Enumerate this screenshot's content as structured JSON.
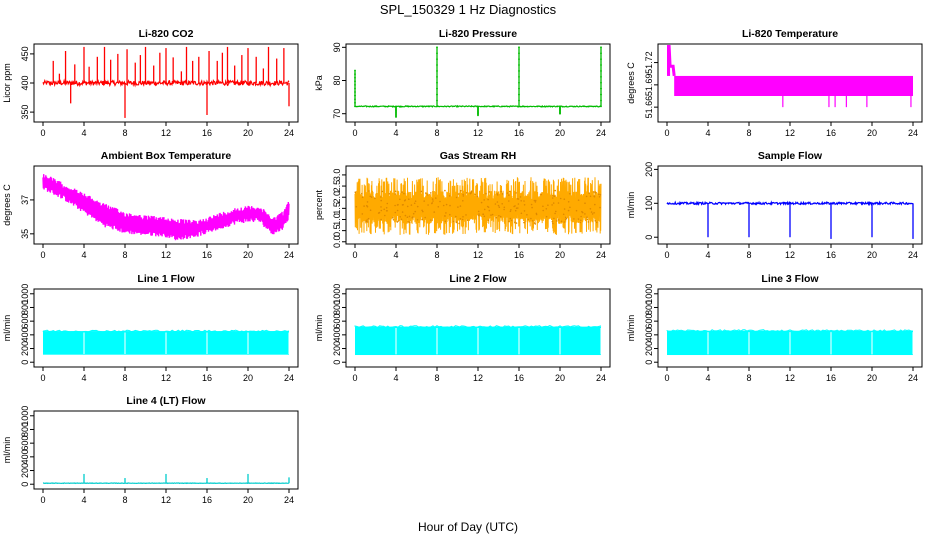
{
  "figure": {
    "title": "SPL_150329  1 Hz Diagnostics",
    "xlabel": "Hour of Day (UTC)"
  },
  "chart_data": [
    {
      "id": "co2",
      "type": "line",
      "title": "Li-820 CO2",
      "ylabel": "Licor ppm",
      "color": "#ff0000",
      "xlim": [
        0,
        24
      ],
      "xticks": [
        "0",
        "4",
        "8",
        "12",
        "16",
        "20",
        "24"
      ],
      "ylim": [
        333,
        467
      ],
      "yticks": [
        {
          "v": 350,
          "label": "350"
        },
        {
          "v": 400,
          "label": "400"
        },
        {
          "v": 450,
          "label": "450"
        }
      ],
      "pattern": "spiky",
      "base": 400,
      "noise": 4,
      "spikes": [
        {
          "x": 1.0,
          "y": 438
        },
        {
          "x": 1.6,
          "y": 416
        },
        {
          "x": 2.2,
          "y": 455
        },
        {
          "x": 2.7,
          "y": 365
        },
        {
          "x": 3.1,
          "y": 432
        },
        {
          "x": 4.0,
          "y": 462
        },
        {
          "x": 4.5,
          "y": 428
        },
        {
          "x": 5.3,
          "y": 445
        },
        {
          "x": 6.0,
          "y": 462
        },
        {
          "x": 6.6,
          "y": 440
        },
        {
          "x": 7.3,
          "y": 450
        },
        {
          "x": 8.0,
          "y": 340
        },
        {
          "x": 8.2,
          "y": 458
        },
        {
          "x": 9.0,
          "y": 435
        },
        {
          "x": 9.5,
          "y": 448
        },
        {
          "x": 10.0,
          "y": 462
        },
        {
          "x": 10.8,
          "y": 430
        },
        {
          "x": 11.4,
          "y": 452
        },
        {
          "x": 12.0,
          "y": 460
        },
        {
          "x": 12.7,
          "y": 444
        },
        {
          "x": 13.5,
          "y": 420
        },
        {
          "x": 14.0,
          "y": 462
        },
        {
          "x": 14.6,
          "y": 438
        },
        {
          "x": 15.2,
          "y": 445
        },
        {
          "x": 16.0,
          "y": 345
        },
        {
          "x": 16.2,
          "y": 455
        },
        {
          "x": 17.0,
          "y": 438
        },
        {
          "x": 17.5,
          "y": 452
        },
        {
          "x": 18.0,
          "y": 462
        },
        {
          "x": 18.7,
          "y": 430
        },
        {
          "x": 19.4,
          "y": 448
        },
        {
          "x": 20.0,
          "y": 460
        },
        {
          "x": 20.8,
          "y": 445
        },
        {
          "x": 21.5,
          "y": 425
        },
        {
          "x": 22.0,
          "y": 462
        },
        {
          "x": 22.8,
          "y": 442
        },
        {
          "x": 23.5,
          "y": 460
        },
        {
          "x": 24.0,
          "y": 360
        }
      ]
    },
    {
      "id": "pressure",
      "type": "line",
      "title": "Li-820 Pressure",
      "ylabel": "kPa",
      "color": "#00bb00",
      "xlim": [
        0,
        24
      ],
      "xticks": [
        "0",
        "4",
        "8",
        "12",
        "16",
        "20",
        "24"
      ],
      "ylim": [
        67.5,
        91
      ],
      "yticks": [
        {
          "v": 70,
          "label": "70"
        },
        {
          "v": 80,
          "label": "80"
        },
        {
          "v": 90,
          "label": "90"
        }
      ],
      "pattern": "flat",
      "base": 72.2,
      "noise": 0.15,
      "spikes": [
        {
          "x": 0.0,
          "y": 83
        },
        {
          "x": 4.0,
          "y": 69
        },
        {
          "x": 8.0,
          "y": 90
        },
        {
          "x": 12.0,
          "y": 69.5
        },
        {
          "x": 16.0,
          "y": 90
        },
        {
          "x": 20.0,
          "y": 70
        },
        {
          "x": 24.0,
          "y": 90
        }
      ]
    },
    {
      "id": "licor_temp",
      "type": "line",
      "title": "Li-820 Temperature",
      "ylabel": "degrees C",
      "color": "#ff00ff",
      "xlim": [
        0,
        24
      ],
      "xticks": [
        "0",
        "4",
        "8",
        "12",
        "16",
        "20",
        "24"
      ],
      "ylim": [
        51.64,
        51.745
      ],
      "yticks": [
        {
          "v": 51.66,
          "label": "51.66"
        },
        {
          "v": 51.69,
          "label": "51.69"
        },
        {
          "v": 51.72,
          "label": "51.72"
        }
      ],
      "pattern": "band",
      "band_low": 51.675,
      "band_high": 51.702,
      "early": [
        {
          "x": 0.0,
          "y": 51.745
        },
        {
          "x": 0.2,
          "y": 51.745
        },
        {
          "x": 0.3,
          "y": 51.715
        },
        {
          "x": 0.6,
          "y": 51.715
        },
        {
          "x": 0.7,
          "y": 51.702
        }
      ],
      "drops": [
        {
          "x": 11.3,
          "y": 51.66
        },
        {
          "x": 15.8,
          "y": 51.66
        },
        {
          "x": 16.4,
          "y": 51.66
        },
        {
          "x": 17.5,
          "y": 51.66
        },
        {
          "x": 19.5,
          "y": 51.66
        },
        {
          "x": 23.8,
          "y": 51.66
        }
      ]
    },
    {
      "id": "box_temp",
      "type": "line",
      "title": "Ambient Box Temperature",
      "ylabel": "degrees C",
      "color": "#ff00ff",
      "xlim": [
        0,
        24
      ],
      "xticks": [
        "0",
        "4",
        "8",
        "12",
        "16",
        "20",
        "24"
      ],
      "ylim": [
        34.4,
        39
      ],
      "yticks": [
        {
          "v": 35,
          "label": "35"
        },
        {
          "v": 37,
          "label": "37"
        }
      ],
      "pattern": "envelope",
      "curve": [
        {
          "x": 0,
          "lo": 37.6,
          "hi": 38.6
        },
        {
          "x": 2,
          "lo": 37.0,
          "hi": 38.0
        },
        {
          "x": 4,
          "lo": 36.2,
          "hi": 37.4
        },
        {
          "x": 6,
          "lo": 35.4,
          "hi": 36.8
        },
        {
          "x": 8,
          "lo": 35.0,
          "hi": 36.3
        },
        {
          "x": 10,
          "lo": 34.9,
          "hi": 36.1
        },
        {
          "x": 12,
          "lo": 34.8,
          "hi": 36.0
        },
        {
          "x": 13,
          "lo": 34.6,
          "hi": 35.9
        },
        {
          "x": 15,
          "lo": 34.8,
          "hi": 35.8
        },
        {
          "x": 17,
          "lo": 35.2,
          "hi": 36.2
        },
        {
          "x": 19,
          "lo": 35.6,
          "hi": 36.6
        },
        {
          "x": 21,
          "lo": 35.7,
          "hi": 36.7
        },
        {
          "x": 22.5,
          "lo": 34.9,
          "hi": 36.0
        },
        {
          "x": 23.5,
          "lo": 35.3,
          "hi": 36.4
        },
        {
          "x": 24,
          "lo": 35.9,
          "hi": 37.0
        }
      ]
    },
    {
      "id": "rh",
      "type": "line",
      "title": "Gas Stream RH",
      "ylabel": "percent",
      "color": "#ffaa00",
      "xlim": [
        0,
        24
      ],
      "xticks": [
        "0",
        "4",
        "8",
        "12",
        "16",
        "20",
        "24"
      ],
      "ylim": [
        -0.1,
        3.4
      ],
      "yticks": [
        {
          "v": 0.0,
          "label": "0.0"
        },
        {
          "v": 0.5,
          "label": "0.5"
        },
        {
          "v": 1.0,
          "label": "1.0"
        },
        {
          "v": 1.5,
          "label": "1.5"
        },
        {
          "v": 2.0,
          "label": "2.0"
        },
        {
          "v": 2.5,
          "label": "2.5"
        },
        {
          "v": 3.0,
          "label": "3.0"
        }
      ],
      "pattern": "noiseband",
      "lo": 0.3,
      "hi": 2.9,
      "core_lo": 0.8,
      "core_hi": 2.3
    },
    {
      "id": "sample_flow",
      "type": "line",
      "title": "Sample Flow",
      "ylabel": "ml/min",
      "color": "#0000ff",
      "xlim": [
        0,
        24
      ],
      "xticks": [
        "0",
        "4",
        "8",
        "12",
        "16",
        "20",
        "24"
      ],
      "ylim": [
        -20,
        210
      ],
      "yticks": [
        {
          "v": 0,
          "label": "0"
        },
        {
          "v": 100,
          "label": "100"
        },
        {
          "v": 200,
          "label": "200"
        }
      ],
      "pattern": "flat",
      "base": 100,
      "noise": 3,
      "spikes": [
        {
          "x": 4.0,
          "y": 0
        },
        {
          "x": 8.0,
          "y": 0
        },
        {
          "x": 12.0,
          "y": 0
        },
        {
          "x": 16.0,
          "y": -5
        },
        {
          "x": 20.0,
          "y": 0
        },
        {
          "x": 24.0,
          "y": -5
        }
      ]
    },
    {
      "id": "line1",
      "type": "area",
      "title": "Line 1 Flow",
      "ylabel": "ml/min",
      "color": "#00ffff",
      "xlim": [
        0,
        24
      ],
      "xticks": [
        "0",
        "4",
        "8",
        "12",
        "16",
        "20",
        "24"
      ],
      "ylim": [
        -70,
        1070
      ],
      "yticks": [
        {
          "v": 0,
          "label": "0"
        },
        {
          "v": 200,
          "label": "200"
        },
        {
          "v": 400,
          "label": "400"
        },
        {
          "v": 600,
          "label": "600"
        },
        {
          "v": 800,
          "label": "800"
        },
        {
          "v": 1000,
          "label": "1000"
        }
      ],
      "pattern": "block",
      "lo": 110,
      "hi": 455,
      "gaps": [
        4,
        8,
        12,
        16,
        20,
        24
      ]
    },
    {
      "id": "line2",
      "type": "area",
      "title": "Line 2 Flow",
      "ylabel": "ml/min",
      "color": "#00ffff",
      "xlim": [
        0,
        24
      ],
      "xticks": [
        "0",
        "4",
        "8",
        "12",
        "16",
        "20",
        "24"
      ],
      "ylim": [
        -70,
        1070
      ],
      "yticks": [
        {
          "v": 0,
          "label": "0"
        },
        {
          "v": 200,
          "label": "200"
        },
        {
          "v": 400,
          "label": "400"
        },
        {
          "v": 600,
          "label": "600"
        },
        {
          "v": 800,
          "label": "800"
        },
        {
          "v": 1000,
          "label": "1000"
        }
      ],
      "pattern": "block",
      "lo": 105,
      "hi": 520,
      "gaps": [
        4,
        8,
        12,
        16,
        20,
        24
      ]
    },
    {
      "id": "line3",
      "type": "area",
      "title": "Line 3 Flow",
      "ylabel": "ml/min",
      "color": "#00ffff",
      "xlim": [
        0,
        24
      ],
      "xticks": [
        "0",
        "4",
        "8",
        "12",
        "16",
        "20",
        "24"
      ],
      "ylim": [
        -70,
        1070
      ],
      "yticks": [
        {
          "v": 0,
          "label": "0"
        },
        {
          "v": 200,
          "label": "200"
        },
        {
          "v": 400,
          "label": "400"
        },
        {
          "v": 600,
          "label": "600"
        },
        {
          "v": 800,
          "label": "800"
        },
        {
          "v": 1000,
          "label": "1000"
        }
      ],
      "pattern": "block",
      "lo": 105,
      "hi": 460,
      "gaps": [
        4,
        8,
        12,
        16,
        20,
        24
      ]
    },
    {
      "id": "line4",
      "type": "line",
      "title": "Line 4 (LT) Flow",
      "ylabel": "ml/min",
      "color": "#00cccc",
      "xlim": [
        0,
        24
      ],
      "xticks": [
        "0",
        "4",
        "8",
        "12",
        "16",
        "20",
        "24"
      ],
      "ylim": [
        -70,
        1070
      ],
      "yticks": [
        {
          "v": 0,
          "label": "0"
        },
        {
          "v": 200,
          "label": "200"
        },
        {
          "v": 400,
          "label": "400"
        },
        {
          "v": 600,
          "label": "600"
        },
        {
          "v": 800,
          "label": "800"
        },
        {
          "v": 1000,
          "label": "1000"
        }
      ],
      "pattern": "flat",
      "base": 15,
      "noise": 3,
      "spikes": [
        {
          "x": 4.0,
          "y": 150
        },
        {
          "x": 8.0,
          "y": 90
        },
        {
          "x": 12.0,
          "y": 150
        },
        {
          "x": 16.0,
          "y": 90
        },
        {
          "x": 20.0,
          "y": 150
        },
        {
          "x": 24.0,
          "y": 100
        }
      ]
    }
  ]
}
